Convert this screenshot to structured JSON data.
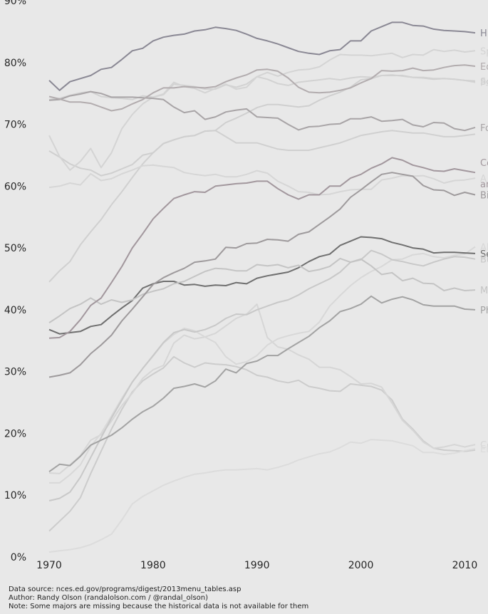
{
  "chart_data": {
    "type": "line",
    "title": "",
    "xlabel": "",
    "ylabel": "",
    "xlim": [
      1970,
      2011
    ],
    "ylim": [
      0,
      90
    ],
    "grid": false,
    "legend": "inline labels at right edge",
    "x_ticks": [
      1970,
      1980,
      1990,
      2000,
      2010
    ],
    "y_ticks": [
      {
        "value": 0,
        "label": "0%"
      },
      {
        "value": 10,
        "label": "10%"
      },
      {
        "value": 20,
        "label": "20%"
      },
      {
        "value": 30,
        "label": "30%"
      },
      {
        "value": 40,
        "label": "40%"
      },
      {
        "value": 50,
        "label": "50%"
      },
      {
        "value": 60,
        "label": "60%"
      },
      {
        "value": 70,
        "label": "70%"
      },
      {
        "value": 80,
        "label": "80%"
      },
      {
        "value": 90,
        "label": "90%"
      }
    ],
    "x": [
      1970,
      1971,
      1972,
      1973,
      1974,
      1975,
      1976,
      1977,
      1978,
      1979,
      1980,
      1981,
      1982,
      1983,
      1984,
      1985,
      1986,
      1987,
      1988,
      1989,
      1990,
      1991,
      1992,
      1993,
      1994,
      1995,
      1996,
      1997,
      1998,
      1999,
      2000,
      2001,
      2002,
      2003,
      2004,
      2005,
      2006,
      2007,
      2008,
      2009,
      2010,
      2011
    ],
    "series": [
      {
        "name": "H",
        "color": "#8a8894",
        "values": [
          77.1,
          75.5,
          76.9,
          77.4,
          77.9,
          78.9,
          79.2,
          80.5,
          81.9,
          82.3,
          83.5,
          84.1,
          84.4,
          84.6,
          85.1,
          85.3,
          85.7,
          85.5,
          85.2,
          84.6,
          83.9,
          83.5,
          83.0,
          82.4,
          81.8,
          81.5,
          81.3,
          81.9,
          82.1,
          83.5,
          83.5,
          85.1,
          85.8,
          86.5,
          86.5,
          86.0,
          85.9,
          85.4,
          85.2,
          85.1,
          85.0,
          84.8
        ]
      },
      {
        "name": "Ed",
        "color": "#b2acae",
        "values": [
          74.5,
          74.1,
          73.6,
          73.6,
          73.4,
          72.8,
          72.2,
          72.5,
          73.3,
          74.0,
          75.1,
          75.9,
          75.9,
          76.1,
          76.0,
          75.9,
          76.1,
          76.9,
          77.5,
          78.0,
          78.8,
          78.9,
          78.6,
          77.5,
          76.0,
          75.2,
          75.1,
          75.2,
          75.5,
          75.9,
          76.7,
          77.4,
          78.7,
          78.6,
          78.7,
          79.1,
          78.7,
          78.8,
          79.2,
          79.5,
          79.6,
          79.4
        ]
      },
      {
        "name": "Fo",
        "color": "#a8a4a6",
        "values": [
          73.9,
          74.0,
          74.6,
          74.9,
          75.3,
          75.0,
          74.4,
          74.4,
          74.4,
          74.3,
          74.2,
          74.0,
          72.8,
          71.9,
          72.2,
          70.8,
          71.2,
          72.0,
          72.3,
          72.5,
          71.2,
          71.1,
          71.0,
          70.0,
          69.1,
          69.6,
          69.7,
          70.0,
          70.1,
          70.9,
          70.9,
          71.2,
          70.5,
          70.6,
          70.8,
          69.9,
          69.6,
          70.3,
          70.2,
          69.3,
          69.0,
          69.5
        ]
      },
      {
        "name": "Communication and",
        "color": "#a2979d",
        "values": [
          35.4,
          35.5,
          36.5,
          38.4,
          40.7,
          41.9,
          44.4,
          47.0,
          50.0,
          52.3,
          54.7,
          56.4,
          58.0,
          58.6,
          59.1,
          59.0,
          60.0,
          60.2,
          60.4,
          60.5,
          60.8,
          60.8,
          59.6,
          58.6,
          57.9,
          58.6,
          58.6,
          60.0,
          60.0,
          61.3,
          61.9,
          62.9,
          63.6,
          64.6,
          64.2,
          63.4,
          63.0,
          62.5,
          62.4,
          62.8,
          62.5,
          62.2
        ]
      },
      {
        "name": "Bi",
        "color": "#9e9a9c",
        "values": [
          29.1,
          29.4,
          29.8,
          31.1,
          32.9,
          34.3,
          35.9,
          38.2,
          40.1,
          42.1,
          44.1,
          45.2,
          46.0,
          46.7,
          47.7,
          47.9,
          48.2,
          50.1,
          50.0,
          50.7,
          50.8,
          51.4,
          51.3,
          51.1,
          52.2,
          52.6,
          53.8,
          55.0,
          56.3,
          58.2,
          59.4,
          60.7,
          61.9,
          62.2,
          61.9,
          61.6,
          60.1,
          59.4,
          59.3,
          58.5,
          59.0,
          58.6
        ]
      },
      {
        "name": "Ph",
        "color": "#a3a3a3",
        "values": [
          13.8,
          15.0,
          14.8,
          16.3,
          18.1,
          18.9,
          19.7,
          20.9,
          22.3,
          23.5,
          24.4,
          25.7,
          27.3,
          27.6,
          28.0,
          27.5,
          28.5,
          30.4,
          29.8,
          31.3,
          31.7,
          32.6,
          32.6,
          33.7,
          34.7,
          35.7,
          37.1,
          38.2,
          39.7,
          40.2,
          40.9,
          42.2,
          41.1,
          41.7,
          42.1,
          41.6,
          40.8,
          40.6,
          40.6,
          40.6,
          40.1,
          40.0
        ]
      },
      {
        "name": "M",
        "color": "#c4c4c4",
        "values": [
          37.9,
          39.0,
          40.2,
          40.9,
          41.9,
          40.9,
          41.6,
          41.2,
          41.6,
          42.5,
          43.0,
          43.4,
          44.2,
          44.6,
          45.4,
          46.2,
          46.7,
          46.6,
          46.3,
          46.3,
          47.3,
          47.1,
          47.3,
          46.8,
          47.2,
          46.2,
          46.5,
          47.0,
          48.3,
          47.7,
          48.2,
          47.1,
          45.7,
          46.0,
          44.7,
          45.1,
          44.3,
          44.2,
          43.1,
          43.5,
          43.1,
          43.2
        ]
      },
      {
        "name": "Se",
        "color": "#6f6f6f",
        "values": [
          36.8,
          36.1,
          36.3,
          36.5,
          37.3,
          37.6,
          39.0,
          40.3,
          41.5,
          43.5,
          44.2,
          44.6,
          44.6,
          44.0,
          44.1,
          43.8,
          44.0,
          43.9,
          44.4,
          44.2,
          45.1,
          45.5,
          45.8,
          46.1,
          46.8,
          47.8,
          48.6,
          49.0,
          50.4,
          51.1,
          51.8,
          51.7,
          51.5,
          50.9,
          50.5,
          50.0,
          49.8,
          49.2,
          49.3,
          49.3,
          49.2,
          49.1
        ]
      },
      {
        "name": "A",
        "color": "#d6d6d6",
        "values": [
          59.8,
          60.0,
          60.5,
          60.2,
          62.0,
          60.9,
          61.2,
          62.0,
          62.6,
          63.3,
          63.4,
          63.2,
          63.0,
          62.2,
          61.9,
          61.7,
          61.9,
          61.5,
          61.5,
          61.9,
          62.5,
          62.1,
          60.8,
          60.0,
          59.1,
          59.0,
          58.6,
          58.7,
          59.1,
          59.4,
          59.5,
          59.5,
          61.0,
          61.3,
          61.7,
          61.6,
          61.7,
          61.2,
          60.5,
          60.9,
          61.0,
          61.3
        ]
      },
      {
        "name": "Sp",
        "color": "#d4d4d4",
        "values": [
          68.2,
          64.8,
          62.6,
          64.0,
          66.1,
          63.0,
          65.4,
          69.3,
          71.6,
          73.3,
          74.4,
          74.9,
          76.8,
          76.1,
          75.8,
          75.1,
          75.8,
          76.5,
          75.7,
          76.0,
          77.7,
          78.4,
          77.8,
          78.4,
          78.8,
          78.9,
          79.3,
          80.4,
          81.3,
          81.2,
          81.2,
          81.1,
          81.3,
          81.5,
          80.8,
          81.3,
          81.2,
          82.1,
          81.8,
          82.0,
          81.7,
          81.9
        ]
      },
      {
        "name": "Ps",
        "color": "#d2d2d2",
        "values": [
          74.0,
          74.2,
          74.7,
          75.1,
          75.3,
          74.5,
          74.3,
          74.2,
          74.0,
          74.6,
          74.4,
          74.8,
          76.5,
          76.3,
          76.1,
          75.7,
          75.7,
          76.4,
          76.0,
          76.5,
          77.7,
          77.3,
          76.6,
          76.3,
          76.8,
          77.0,
          77.2,
          77.4,
          77.2,
          77.5,
          77.7,
          77.6,
          77.9,
          78.0,
          77.8,
          77.6,
          77.6,
          77.4,
          77.4,
          77.3,
          77.1,
          76.8
        ]
      },
      {
        "name": "So",
        "color": "#cfcfcf",
        "values": [
          65.7,
          64.7,
          63.6,
          62.9,
          62.6,
          61.7,
          62.1,
          62.8,
          63.5,
          65.0,
          65.4,
          66.9,
          67.5,
          68.0,
          68.2,
          68.9,
          69.0,
          70.3,
          71.0,
          71.8,
          72.7,
          73.2,
          73.2,
          73.0,
          72.8,
          73.0,
          73.9,
          74.6,
          75.2,
          76.0,
          77.2,
          77.4,
          77.9,
          77.9,
          77.9,
          77.6,
          77.5,
          77.3,
          77.4,
          77.3,
          77.1,
          77.0
        ]
      },
      {
        "name": "Ar",
        "color": "#d0d0d0",
        "values": [
          44.5,
          46.3,
          47.8,
          50.5,
          52.6,
          54.6,
          57.0,
          59.1,
          61.4,
          63.6,
          65.4,
          66.9,
          67.5,
          68.0,
          68.2,
          68.9,
          69.0,
          68.0,
          67.0,
          67.0,
          67.0,
          66.5,
          66.0,
          65.8,
          65.8,
          65.8,
          66.2,
          66.6,
          67.0,
          67.6,
          68.2,
          68.5,
          68.8,
          69.0,
          68.8,
          68.6,
          68.6,
          68.3,
          68.0,
          68.0,
          68.2,
          68.4
        ]
      },
      {
        "name": "Bu",
        "color": "#c8c8c8",
        "values": [
          9.1,
          9.5,
          10.5,
          12.9,
          16.1,
          19.3,
          22.5,
          25.4,
          28.3,
          30.5,
          32.6,
          34.7,
          36.3,
          36.8,
          36.4,
          36.8,
          37.5,
          38.6,
          39.3,
          39.2,
          40.0,
          40.6,
          41.2,
          41.6,
          42.4,
          43.4,
          44.2,
          45.0,
          46.1,
          47.7,
          48.1,
          49.6,
          49.0,
          48.1,
          47.8,
          47.4,
          47.1,
          47.7,
          48.2,
          48.6,
          48.5,
          48.2
        ]
      },
      {
        "name": "Al",
        "color": "#d8d8d8",
        "values": [
          12.0,
          12.0,
          13.3,
          14.9,
          17.9,
          20.0,
          22.8,
          25.7,
          28.3,
          30.5,
          32.5,
          34.6,
          36.0,
          37.0,
          36.6,
          35.6,
          34.7,
          32.4,
          31.2,
          31.6,
          32.6,
          34.3,
          35.3,
          35.8,
          36.2,
          36.5,
          38.0,
          40.6,
          42.3,
          43.9,
          45.2,
          46.2,
          47.0,
          48.1,
          48.2,
          48.9,
          49.1,
          48.6,
          48.4,
          48.8,
          49.0,
          50.2
        ]
      },
      {
        "name": "Co",
        "color": "#d6d6d6",
        "values": [
          13.6,
          13.5,
          14.9,
          16.4,
          18.9,
          19.8,
          22.0,
          24.5,
          26.5,
          28.9,
          30.3,
          31.0,
          34.6,
          35.9,
          35.3,
          35.6,
          36.2,
          37.4,
          38.6,
          39.3,
          40.9,
          35.5,
          34.0,
          33.6,
          32.7,
          32.0,
          30.7,
          30.7,
          30.3,
          29.2,
          28.0,
          28.1,
          27.5,
          24.9,
          22.1,
          20.5,
          18.6,
          17.6,
          17.8,
          18.2,
          17.8,
          18.2
        ]
      },
      {
        "name": "En",
        "color": "#dcdcdc",
        "values": [
          0.8,
          1.0,
          1.2,
          1.5,
          2.0,
          2.8,
          3.7,
          6.0,
          8.6,
          9.8,
          10.7,
          11.6,
          12.3,
          12.9,
          13.4,
          13.6,
          13.9,
          14.1,
          14.1,
          14.2,
          14.3,
          14.1,
          14.5,
          15.0,
          15.7,
          16.2,
          16.7,
          17.0,
          17.7,
          18.6,
          18.4,
          19.0,
          18.9,
          18.8,
          18.4,
          18.0,
          16.9,
          16.9,
          16.6,
          16.8,
          17.2,
          17.5
        ]
      },
      {
        "name": "Hl",
        "color": "#cccccc",
        "values": [
          4.2,
          5.8,
          7.4,
          9.6,
          13.5,
          17.1,
          20.7,
          23.9,
          26.7,
          28.5,
          29.6,
          30.6,
          32.4,
          31.4,
          30.7,
          31.4,
          31.2,
          31.1,
          30.8,
          30.3,
          29.4,
          29.1,
          28.5,
          28.2,
          28.6,
          27.6,
          27.3,
          26.9,
          26.8,
          28.0,
          27.8,
          27.6,
          27.0,
          25.4,
          22.3,
          20.7,
          18.8,
          17.6,
          17.3,
          17.2,
          17.1,
          17.3
        ]
      }
    ],
    "right_labels": [
      {
        "text": "H",
        "series": 0
      },
      {
        "text": "Sp",
        "series": 9
      },
      {
        "text": "Ed",
        "series": 1
      },
      {
        "text": "Ps",
        "series": 10
      },
      {
        "text": "Fo",
        "series": 2
      },
      {
        "text": "So",
        "series": 11
      },
      {
        "text": "Co",
        "series": 3
      },
      {
        "text": "an",
        "series": 3
      },
      {
        "text": "A",
        "series": 8
      },
      {
        "text": "Bi",
        "series": 4
      },
      {
        "text": "Al",
        "series": 14
      },
      {
        "text": "Se",
        "series": 7
      },
      {
        "text": "Bu",
        "series": 13
      },
      {
        "text": "M",
        "series": 6
      },
      {
        "text": "Ph",
        "series": 5
      },
      {
        "text": "Co",
        "series": 15
      },
      {
        "text": "En",
        "series": 16
      }
    ]
  },
  "notes": {
    "source": "Data source: nces.ed.gov/programs/digest/2013menu_tables.asp",
    "author": "Author: Randy Olson (randalolson.com / @randal_olson)",
    "missing": "Note: Some majors are missing because the historical data is not available for them"
  }
}
